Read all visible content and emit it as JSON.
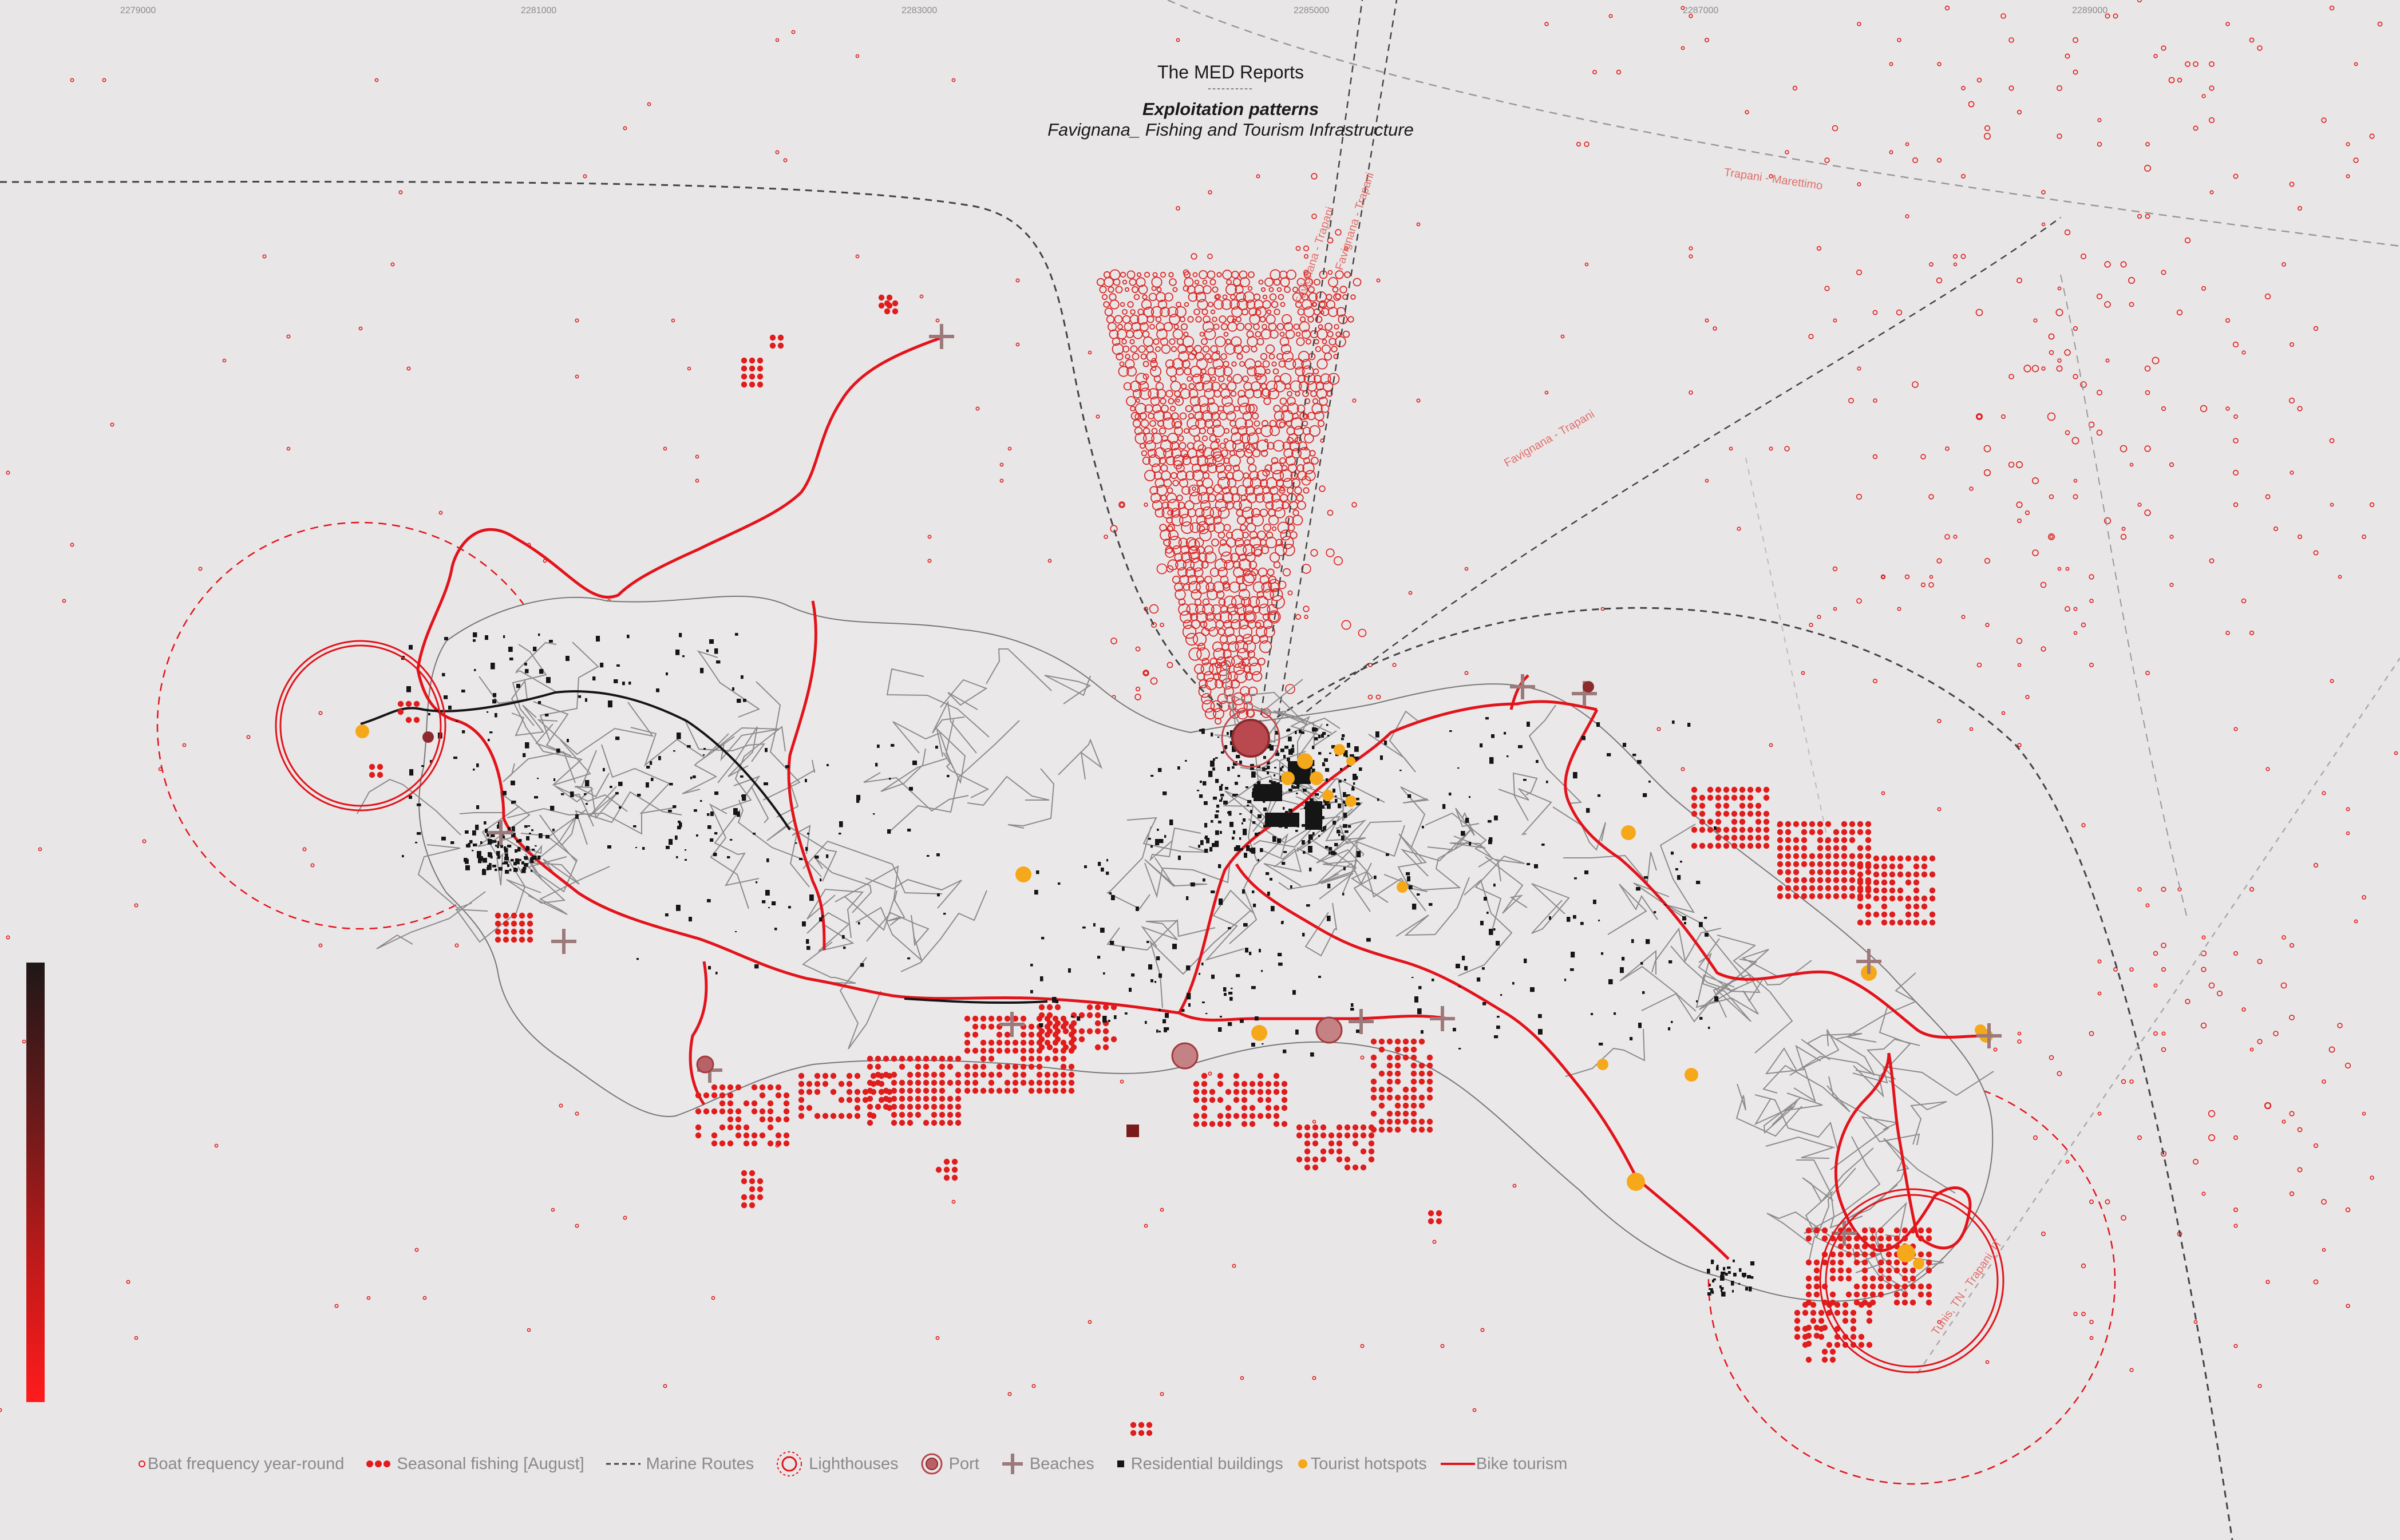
{
  "title": {
    "main": "The MED Reports",
    "separator": "----------",
    "heading": "Exploitation patterns",
    "subheading": "Favignana_ Fishing and Tourism Infrastructure"
  },
  "coordinates": [
    "2279000",
    "2281000",
    "2283000",
    "2285000",
    "2287000",
    "2289000"
  ],
  "route_labels": [
    "Trapani - Marettimo",
    "Favignana - Trapani",
    "Tunis, TN - Trapani, IT"
  ],
  "legend": {
    "boat_frequency": "Boat frequency year-round",
    "seasonal_fishing": "Seasonal fishing [August]",
    "marine_routes": "Marine Routes",
    "lighthouses": "Lighthouses",
    "port": "Port",
    "beaches": "Beaches",
    "residential": "Residential buildings",
    "tourist_hotspots": "Tourist hotspots",
    "bike_tourism": "Bike tourism"
  },
  "colors": {
    "background": "#e9e6e7",
    "red": "#e3131b",
    "dot_red": "#e01c1c",
    "tourist_yellow": "#f5a81a",
    "beach_cross": "#9c7a7b",
    "building_black": "#151515",
    "road_gray": "#8c8c8c"
  },
  "icons": {
    "boat_frequency": "hollow-circle-icon",
    "seasonal_fishing": "dot-cluster-icon",
    "lighthouse": "double-ring-icon",
    "port": "port-ring-icon",
    "beach": "cross-icon",
    "residential": "square-icon",
    "tourist_hotspot": "yellow-dot-icon"
  }
}
